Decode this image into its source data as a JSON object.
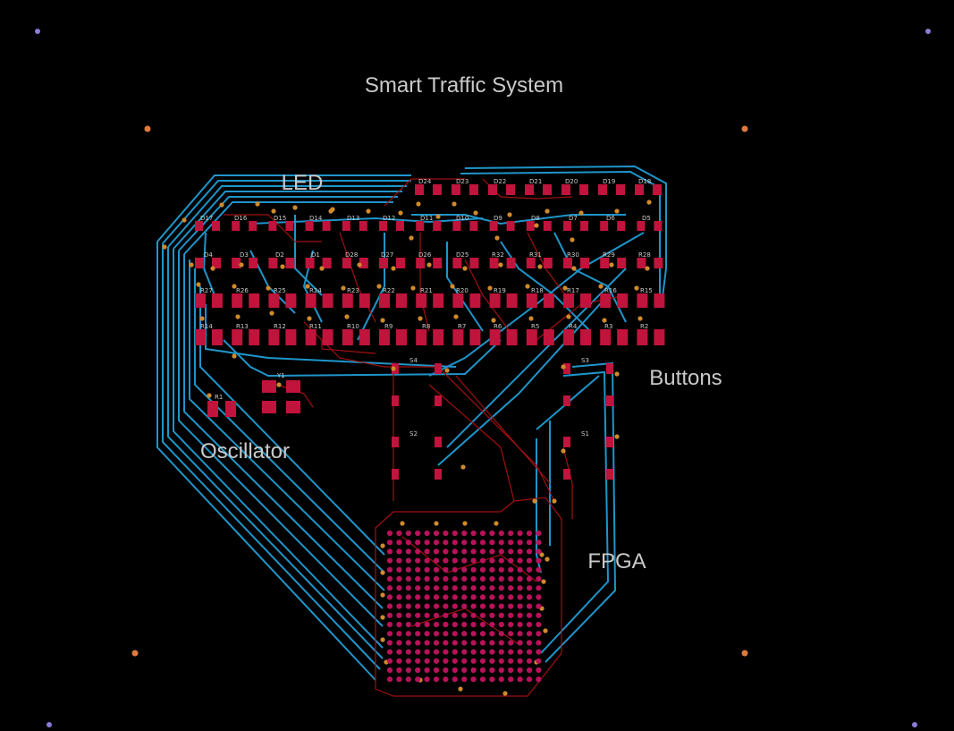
{
  "title": "Smart Traffic System",
  "labels": {
    "led": "LED",
    "buttons": "Buttons",
    "oscillator": "Oscillator",
    "fpga": "FPGA"
  },
  "refs": {
    "row1": [
      "D24",
      "D23",
      "D22",
      "D21",
      "D20",
      "D19",
      "D18"
    ],
    "row2": [
      "D17",
      "D16",
      "D15",
      "D14",
      "D13",
      "D12",
      "D11",
      "D10",
      "D9",
      "D8",
      "D7",
      "D6",
      "D5"
    ],
    "row3": [
      "D4",
      "D3",
      "D2",
      "D1",
      "D28",
      "D27",
      "D26",
      "D25",
      "R32",
      "R31",
      "R30",
      "R29",
      "R28"
    ],
    "row4": [
      "R27",
      "R26",
      "R25",
      "R24",
      "R23",
      "R22",
      "R21",
      "R20",
      "R19",
      "R18",
      "R17",
      "R16",
      "R15"
    ],
    "row5": [
      "R14",
      "R13",
      "R12",
      "R11",
      "R10",
      "R9",
      "R8",
      "R7",
      "R6",
      "R5",
      "R4",
      "R3",
      "R2"
    ],
    "buttons": [
      "S4",
      "S3",
      "S2",
      "S1"
    ],
    "resistor_r1": "R1",
    "oscillator_y": "Y1"
  },
  "colors": {
    "background": "#000000",
    "top_copper": "#c0143c",
    "bottom_copper": "#1f95c9",
    "silkscreen": "#c9c9c9"
  }
}
